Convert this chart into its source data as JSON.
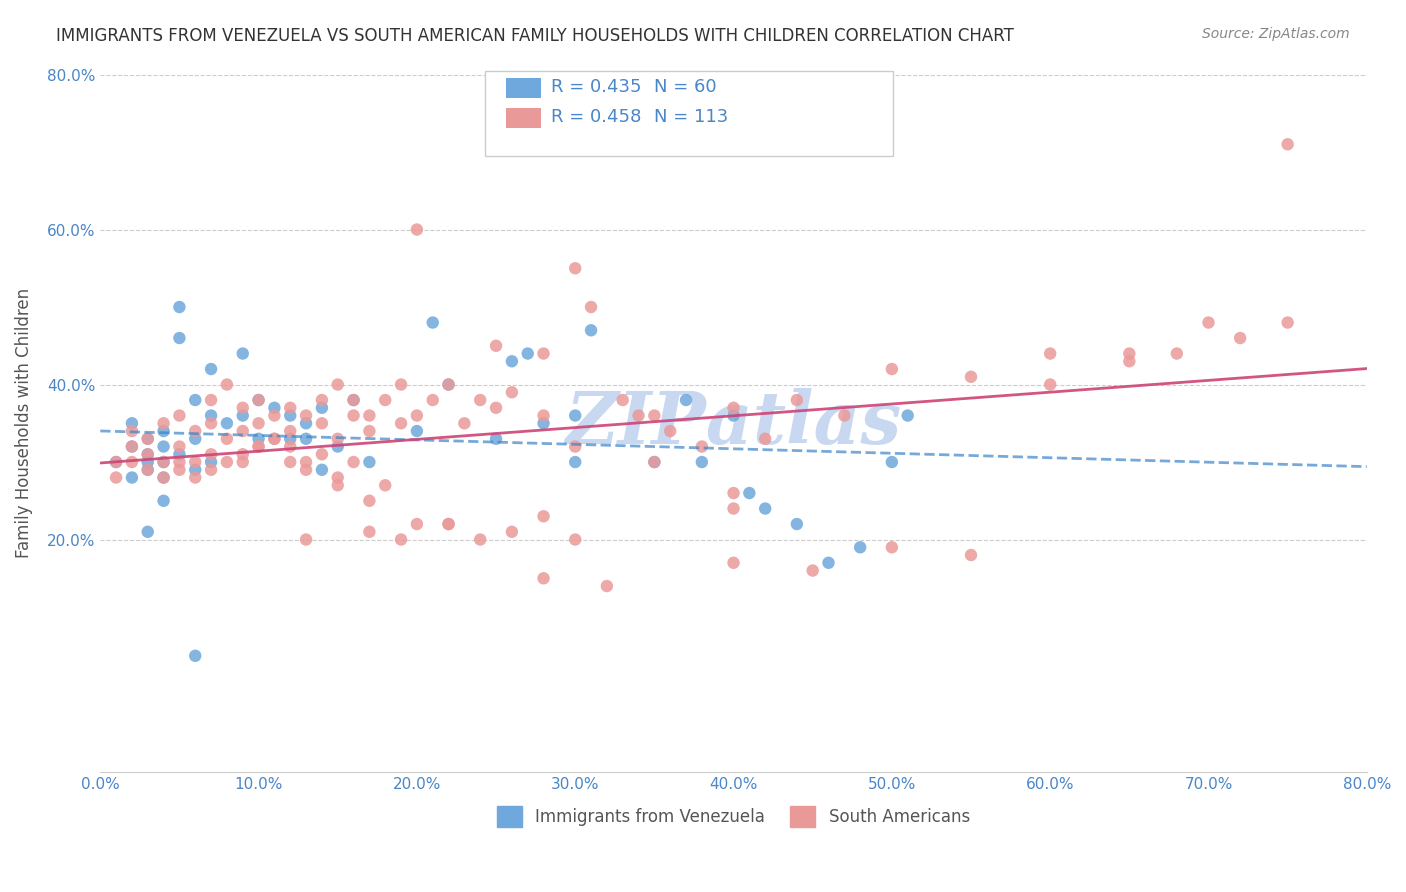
{
  "title": "IMMIGRANTS FROM VENEZUELA VS SOUTH AMERICAN FAMILY HOUSEHOLDS WITH CHILDREN CORRELATION CHART",
  "source": "Source: ZipAtlas.com",
  "xlabel": "",
  "ylabel": "Family Households with Children",
  "xlim": [
    0,
    0.8
  ],
  "ylim": [
    0,
    0.8
  ],
  "xticks": [
    0.0,
    0.1,
    0.2,
    0.3,
    0.4,
    0.5,
    0.6,
    0.7,
    0.8
  ],
  "yticks": [
    0.2,
    0.4,
    0.6,
    0.8
  ],
  "xtick_labels": [
    "0.0%",
    "10.0%",
    "20.0%",
    "30.0%",
    "40.0%",
    "50.0%",
    "60.0%",
    "70.0%",
    "80.0%"
  ],
  "ytick_labels": [
    "20.0%",
    "40.0%",
    "60.0%",
    "80.0%"
  ],
  "legend1_label": "R = 0.435   N = 60",
  "legend2_label": "R = 0.458   N = 113",
  "legend_label1": "Immigrants from Venezuela",
  "legend_label2": "South Americans",
  "blue_color": "#6fa8dc",
  "pink_color": "#ea9999",
  "blue_line_color": "#3d85c8",
  "pink_line_color": "#cc4477",
  "title_color": "#333333",
  "axis_color": "#4a86c8",
  "watermark": "ZIPAtlas",
  "watermark_color": "#c8d8f0",
  "blue_scatter_x": [
    0.01,
    0.02,
    0.02,
    0.02,
    0.03,
    0.03,
    0.03,
    0.03,
    0.04,
    0.04,
    0.04,
    0.04,
    0.05,
    0.05,
    0.05,
    0.06,
    0.06,
    0.06,
    0.07,
    0.07,
    0.07,
    0.08,
    0.09,
    0.09,
    0.1,
    0.1,
    0.11,
    0.12,
    0.12,
    0.13,
    0.13,
    0.14,
    0.14,
    0.15,
    0.16,
    0.17,
    0.2,
    0.21,
    0.22,
    0.25,
    0.26,
    0.27,
    0.28,
    0.3,
    0.3,
    0.31,
    0.35,
    0.37,
    0.38,
    0.4,
    0.41,
    0.42,
    0.44,
    0.46,
    0.48,
    0.5,
    0.51,
    0.06,
    0.04,
    0.03
  ],
  "blue_scatter_y": [
    0.3,
    0.28,
    0.32,
    0.35,
    0.3,
    0.31,
    0.29,
    0.33,
    0.32,
    0.3,
    0.28,
    0.34,
    0.31,
    0.46,
    0.5,
    0.29,
    0.33,
    0.38,
    0.42,
    0.36,
    0.3,
    0.35,
    0.44,
    0.36,
    0.33,
    0.38,
    0.37,
    0.33,
    0.36,
    0.33,
    0.35,
    0.37,
    0.29,
    0.32,
    0.38,
    0.3,
    0.34,
    0.48,
    0.4,
    0.33,
    0.43,
    0.44,
    0.35,
    0.3,
    0.36,
    0.47,
    0.3,
    0.38,
    0.3,
    0.36,
    0.26,
    0.24,
    0.22,
    0.17,
    0.19,
    0.3,
    0.36,
    0.05,
    0.25,
    0.21
  ],
  "pink_scatter_x": [
    0.01,
    0.01,
    0.02,
    0.02,
    0.02,
    0.03,
    0.03,
    0.03,
    0.04,
    0.04,
    0.04,
    0.05,
    0.05,
    0.05,
    0.06,
    0.06,
    0.07,
    0.07,
    0.07,
    0.08,
    0.08,
    0.09,
    0.09,
    0.09,
    0.1,
    0.1,
    0.1,
    0.11,
    0.11,
    0.12,
    0.12,
    0.12,
    0.13,
    0.13,
    0.14,
    0.14,
    0.15,
    0.15,
    0.16,
    0.16,
    0.17,
    0.17,
    0.18,
    0.19,
    0.19,
    0.2,
    0.21,
    0.22,
    0.23,
    0.24,
    0.25,
    0.26,
    0.28,
    0.3,
    0.31,
    0.33,
    0.35,
    0.36,
    0.38,
    0.4,
    0.42,
    0.44,
    0.47,
    0.5,
    0.55,
    0.6,
    0.65,
    0.7,
    0.75,
    0.05,
    0.06,
    0.07,
    0.08,
    0.09,
    0.1,
    0.11,
    0.12,
    0.13,
    0.14,
    0.15,
    0.16,
    0.17,
    0.18,
    0.2,
    0.22,
    0.24,
    0.26,
    0.28,
    0.3,
    0.2,
    0.28,
    0.34,
    0.4,
    0.35,
    0.4,
    0.3,
    0.25,
    0.22,
    0.19,
    0.17,
    0.15,
    0.13,
    0.28,
    0.32,
    0.4,
    0.45,
    0.5,
    0.55,
    0.6,
    0.65,
    0.68,
    0.72,
    0.75
  ],
  "pink_scatter_y": [
    0.3,
    0.28,
    0.32,
    0.3,
    0.34,
    0.29,
    0.33,
    0.31,
    0.28,
    0.35,
    0.3,
    0.32,
    0.36,
    0.29,
    0.34,
    0.3,
    0.35,
    0.31,
    0.38,
    0.33,
    0.4,
    0.37,
    0.34,
    0.3,
    0.35,
    0.32,
    0.38,
    0.36,
    0.33,
    0.32,
    0.37,
    0.34,
    0.36,
    0.3,
    0.38,
    0.35,
    0.33,
    0.4,
    0.36,
    0.38,
    0.34,
    0.36,
    0.38,
    0.35,
    0.4,
    0.36,
    0.38,
    0.4,
    0.35,
    0.38,
    0.37,
    0.39,
    0.36,
    0.32,
    0.5,
    0.38,
    0.36,
    0.34,
    0.32,
    0.37,
    0.33,
    0.38,
    0.36,
    0.42,
    0.41,
    0.4,
    0.44,
    0.48,
    0.71,
    0.3,
    0.28,
    0.29,
    0.3,
    0.31,
    0.32,
    0.33,
    0.3,
    0.29,
    0.31,
    0.28,
    0.3,
    0.25,
    0.27,
    0.22,
    0.22,
    0.2,
    0.21,
    0.23,
    0.2,
    0.6,
    0.44,
    0.36,
    0.26,
    0.3,
    0.24,
    0.55,
    0.45,
    0.22,
    0.2,
    0.21,
    0.27,
    0.2,
    0.15,
    0.14,
    0.17,
    0.16,
    0.19,
    0.18,
    0.44,
    0.43,
    0.44,
    0.46,
    0.48
  ]
}
